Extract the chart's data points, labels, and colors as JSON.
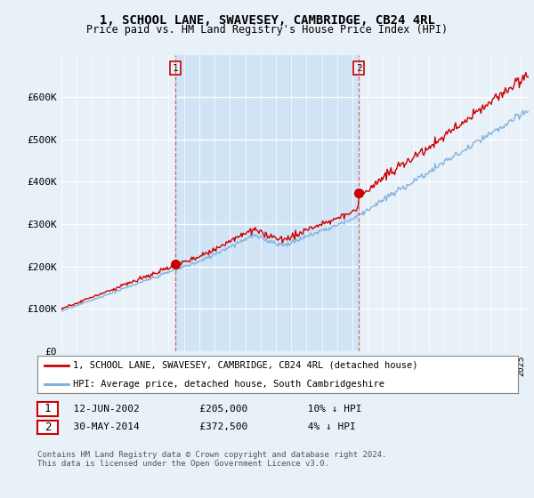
{
  "title": "1, SCHOOL LANE, SWAVESEY, CAMBRIDGE, CB24 4RL",
  "subtitle": "Price paid vs. HM Land Registry's House Price Index (HPI)",
  "background_color": "#e8f0f8",
  "plot_bg_color": "#e8f0f8",
  "highlight_bg_color": "#d0e4f5",
  "grid_color": "white",
  "ylim": [
    0,
    700000
  ],
  "yticks": [
    0,
    100000,
    200000,
    300000,
    400000,
    500000,
    600000
  ],
  "ytick_labels": [
    "£0",
    "£100K",
    "£200K",
    "£300K",
    "£400K",
    "£500K",
    "£600K"
  ],
  "sale1_date": 2002.45,
  "sale1_price": 205000,
  "sale2_date": 2014.42,
  "sale2_price": 372500,
  "line_color_price": "#cc0000",
  "line_color_hpi": "#7aaddb",
  "dashed_color": "#cc4444",
  "legend_label_price": "1, SCHOOL LANE, SWAVESEY, CAMBRIDGE, CB24 4RL (detached house)",
  "legend_label_hpi": "HPI: Average price, detached house, South Cambridgeshire",
  "footer": "Contains HM Land Registry data © Crown copyright and database right 2024.\nThis data is licensed under the Open Government Licence v3.0.",
  "xmin": 1995,
  "xmax": 2025.5
}
